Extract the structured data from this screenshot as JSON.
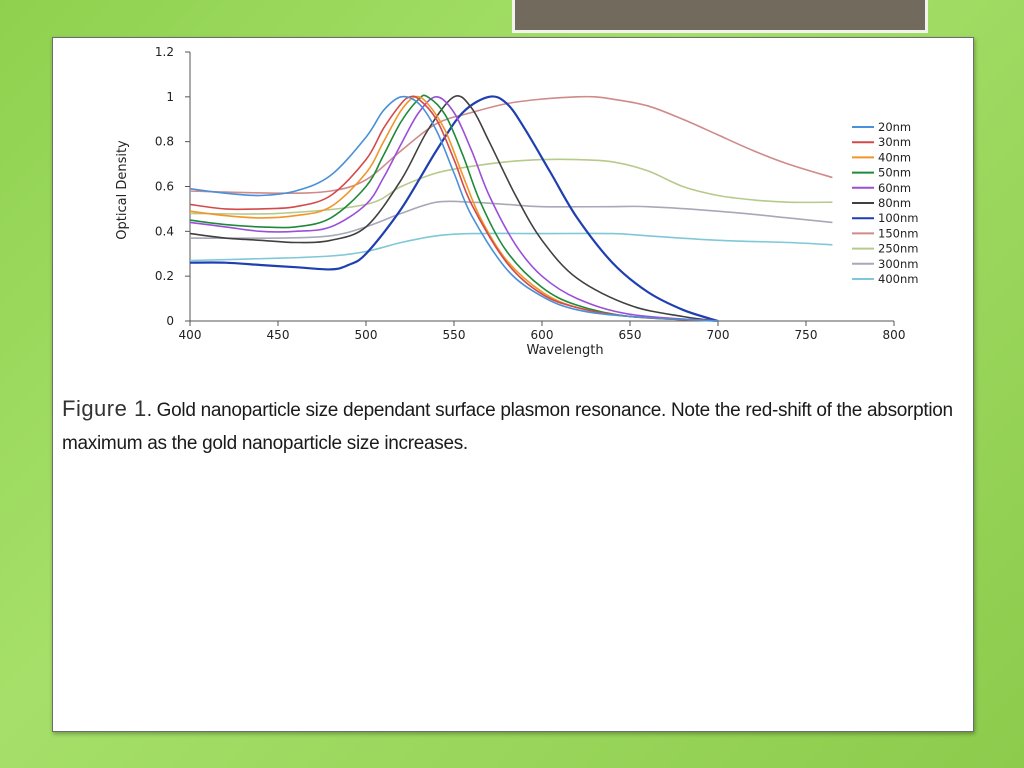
{
  "caption": {
    "label": "Figure 1",
    "text": ". Gold nanoparticle size dependant surface plasmon resonance. Note the red-shift of the absorption maximum as the gold nanoparticle size increases."
  },
  "chart_data": {
    "type": "line",
    "xlabel": "Wavelength",
    "ylabel": "Optical Density",
    "xlim": [
      400,
      800
    ],
    "ylim": [
      0,
      1.2
    ],
    "xticks": [
      400,
      450,
      500,
      550,
      600,
      650,
      700,
      750,
      800
    ],
    "yticks": [
      0,
      0.2,
      0.4,
      0.6,
      0.8,
      1,
      1.2
    ],
    "ytick_labels": [
      "0",
      "0.2",
      "0.4",
      "0.6",
      "0.8",
      "1",
      "1.2"
    ],
    "grid": false,
    "legend_position": "right",
    "series": [
      {
        "name": "20nm",
        "color": "#4a90d9",
        "x": [
          400,
          420,
          440,
          460,
          480,
          500,
          510,
          520,
          530,
          540,
          550,
          560,
          580,
          600,
          620,
          650,
          700
        ],
        "y": [
          0.59,
          0.57,
          0.56,
          0.58,
          0.65,
          0.82,
          0.94,
          1.0,
          0.97,
          0.85,
          0.66,
          0.47,
          0.23,
          0.11,
          0.05,
          0.02,
          0.0
        ]
      },
      {
        "name": "30nm",
        "color": "#d44a4a",
        "x": [
          400,
          420,
          440,
          460,
          480,
          500,
          510,
          520,
          525,
          530,
          540,
          550,
          560,
          580,
          600,
          620,
          650,
          700
        ],
        "y": [
          0.52,
          0.5,
          0.5,
          0.51,
          0.56,
          0.72,
          0.86,
          0.97,
          1.0,
          0.99,
          0.9,
          0.72,
          0.52,
          0.26,
          0.12,
          0.06,
          0.02,
          0.0
        ]
      },
      {
        "name": "40nm",
        "color": "#f0962a",
        "x": [
          400,
          420,
          440,
          460,
          480,
          500,
          510,
          520,
          528,
          535,
          545,
          555,
          565,
          580,
          600,
          620,
          650,
          700
        ],
        "y": [
          0.49,
          0.47,
          0.46,
          0.47,
          0.51,
          0.66,
          0.8,
          0.94,
          1.0,
          0.97,
          0.85,
          0.65,
          0.46,
          0.27,
          0.13,
          0.06,
          0.02,
          0.0
        ]
      },
      {
        "name": "50nm",
        "color": "#1f8a3a",
        "x": [
          400,
          420,
          440,
          460,
          480,
          500,
          510,
          520,
          530,
          535,
          545,
          555,
          565,
          580,
          600,
          620,
          650,
          700
        ],
        "y": [
          0.45,
          0.43,
          0.42,
          0.42,
          0.46,
          0.6,
          0.74,
          0.89,
          0.99,
          1.0,
          0.92,
          0.74,
          0.53,
          0.31,
          0.15,
          0.07,
          0.02,
          0.0
        ]
      },
      {
        "name": "60nm",
        "color": "#9b4fd9",
        "x": [
          400,
          420,
          440,
          460,
          480,
          500,
          510,
          520,
          530,
          540,
          550,
          560,
          570,
          585,
          600,
          620,
          650,
          700
        ],
        "y": [
          0.44,
          0.42,
          0.4,
          0.4,
          0.42,
          0.52,
          0.64,
          0.79,
          0.93,
          1.0,
          0.93,
          0.76,
          0.56,
          0.34,
          0.2,
          0.1,
          0.03,
          0.0
        ]
      },
      {
        "name": "80nm",
        "color": "#404040",
        "x": [
          400,
          420,
          440,
          460,
          480,
          500,
          520,
          535,
          550,
          560,
          570,
          585,
          600,
          620,
          650,
          680,
          700
        ],
        "y": [
          0.39,
          0.37,
          0.36,
          0.35,
          0.36,
          0.42,
          0.63,
          0.85,
          1.0,
          0.95,
          0.8,
          0.56,
          0.36,
          0.19,
          0.07,
          0.02,
          0.0
        ]
      },
      {
        "name": "100nm",
        "color": "#1f3fb0",
        "x": [
          400,
          420,
          440,
          460,
          480,
          490,
          500,
          520,
          540,
          555,
          570,
          580,
          590,
          605,
          620,
          640,
          660,
          680,
          700
        ],
        "y": [
          0.26,
          0.26,
          0.25,
          0.24,
          0.23,
          0.25,
          0.3,
          0.5,
          0.76,
          0.93,
          1.0,
          0.97,
          0.86,
          0.66,
          0.46,
          0.26,
          0.13,
          0.05,
          0.0
        ]
      },
      {
        "name": "150nm",
        "color": "#d08a8a",
        "x": [
          400,
          450,
          480,
          500,
          520,
          540,
          560,
          580,
          600,
          620,
          630,
          640,
          660,
          680,
          700,
          720,
          740,
          765
        ],
        "y": [
          0.58,
          0.57,
          0.58,
          0.63,
          0.76,
          0.88,
          0.93,
          0.97,
          0.99,
          1.0,
          1.0,
          0.99,
          0.96,
          0.9,
          0.83,
          0.76,
          0.7,
          0.64
        ]
      },
      {
        "name": "250nm",
        "color": "#b8c98c",
        "x": [
          400,
          450,
          500,
          520,
          540,
          560,
          580,
          600,
          620,
          640,
          660,
          680,
          700,
          720,
          740,
          765
        ],
        "y": [
          0.48,
          0.48,
          0.52,
          0.6,
          0.66,
          0.69,
          0.71,
          0.72,
          0.72,
          0.71,
          0.67,
          0.6,
          0.56,
          0.54,
          0.53,
          0.53
        ]
      },
      {
        "name": "300nm",
        "color": "#a8a8b8",
        "x": [
          400,
          450,
          480,
          500,
          520,
          540,
          560,
          580,
          600,
          640,
          660,
          700,
          740,
          765
        ],
        "y": [
          0.37,
          0.37,
          0.38,
          0.42,
          0.48,
          0.53,
          0.53,
          0.52,
          0.51,
          0.51,
          0.51,
          0.49,
          0.46,
          0.44
        ]
      },
      {
        "name": "400nm",
        "color": "#7ec8d8",
        "x": [
          400,
          450,
          480,
          500,
          520,
          540,
          560,
          600,
          640,
          660,
          700,
          740,
          765
        ],
        "y": [
          0.27,
          0.28,
          0.29,
          0.31,
          0.35,
          0.38,
          0.39,
          0.39,
          0.39,
          0.38,
          0.36,
          0.35,
          0.34
        ]
      }
    ]
  }
}
